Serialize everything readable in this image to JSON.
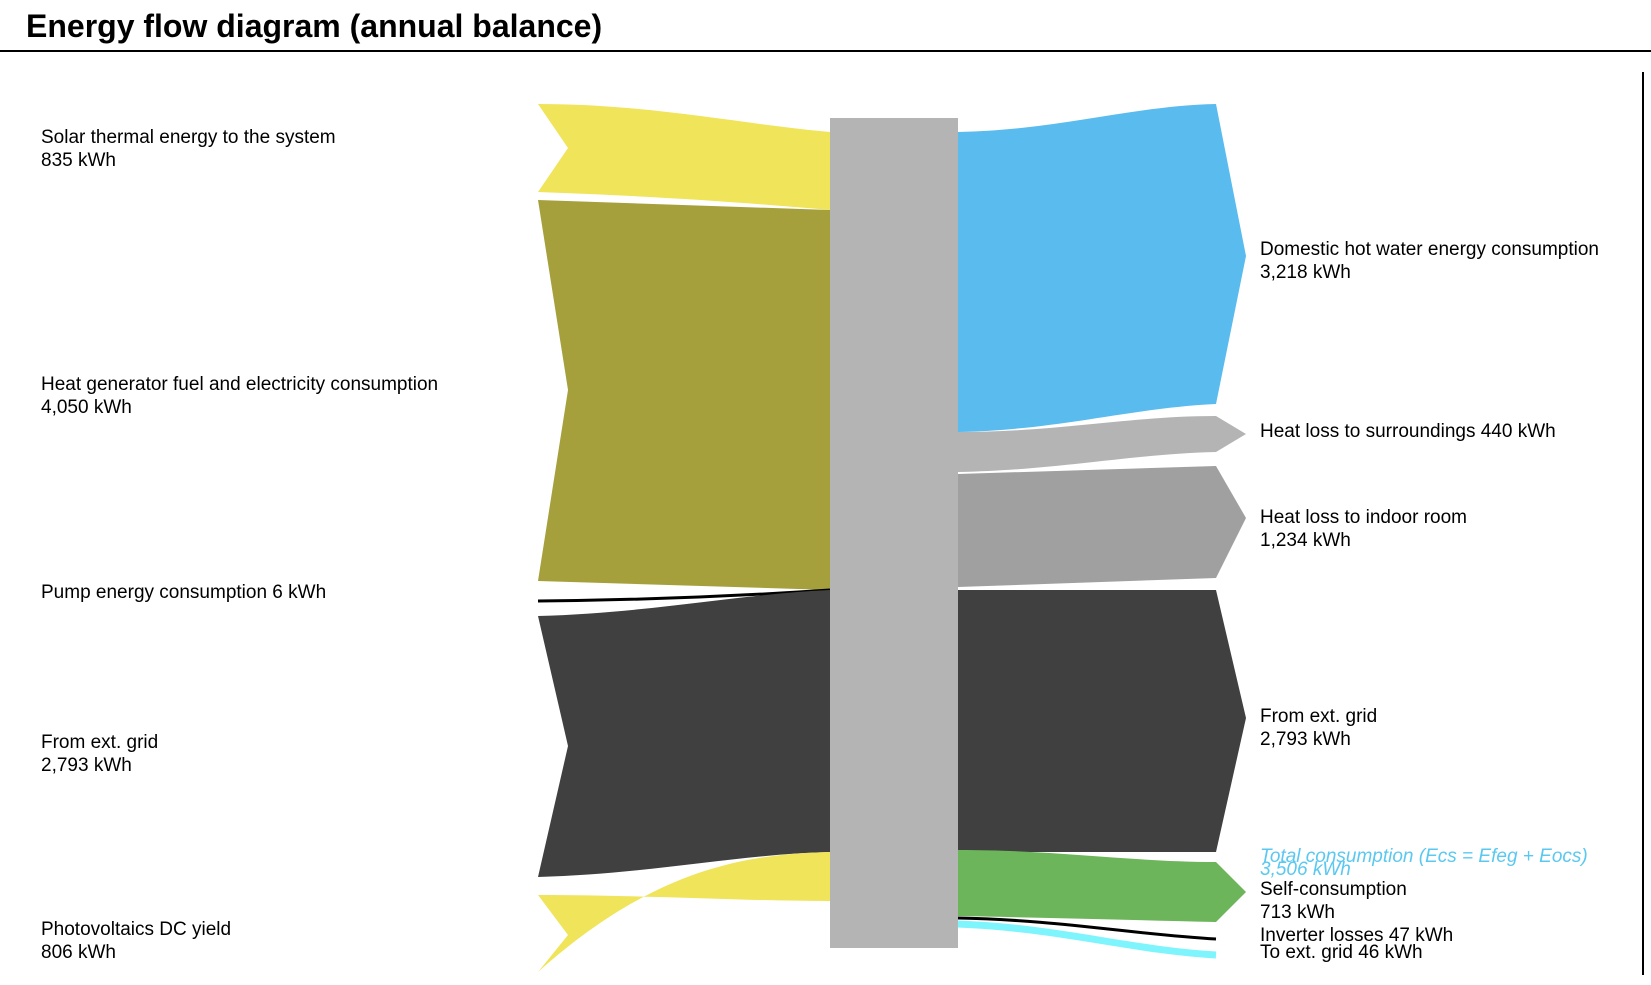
{
  "title": "Energy flow diagram (annual balance)",
  "colors": {
    "solar_yellow": "#f0e45a",
    "fuel_olive": "#a6a03c",
    "grid_dark": "#404040",
    "hub_gray": "#b4b4b4",
    "dhw_blue": "#5abbef",
    "loss_light_gray": "#b4b4b4",
    "loss_mid_gray": "#a0a0a0",
    "self_green": "#6db55b",
    "to_grid_cyan": "#7ef4fc",
    "annotation_blue": "#5ac8f0"
  },
  "inputs": [
    {
      "id": "solar",
      "name": "Solar thermal energy to the system",
      "value": "835 kWh",
      "kwh": 835
    },
    {
      "id": "fuel",
      "name": "Heat generator fuel and electricity consumption",
      "value": "4,050 kWh",
      "kwh": 4050
    },
    {
      "id": "pump",
      "name": "Pump energy consumption 6 kWh",
      "value": "",
      "kwh": 6
    },
    {
      "id": "grid_in",
      "name": "From ext. grid",
      "value": "2,793 kWh",
      "kwh": 2793
    },
    {
      "id": "pv",
      "name": "Photovoltaics DC yield",
      "value": "806 kWh",
      "kwh": 806
    }
  ],
  "outputs": [
    {
      "id": "dhw",
      "name": "Domestic hot water energy consumption",
      "value": "3,218 kWh",
      "kwh": 3218
    },
    {
      "id": "loss_surr",
      "name": "Heat loss to surroundings 440 kWh",
      "value": "",
      "kwh": 440
    },
    {
      "id": "loss_room",
      "name": "Heat loss to indoor room",
      "value": "1,234 kWh",
      "kwh": 1234
    },
    {
      "id": "grid_out",
      "name": "From ext. grid",
      "value": "2,793 kWh",
      "kwh": 2793
    },
    {
      "id": "self",
      "name": "Self-consumption",
      "value": "713 kWh",
      "kwh": 713
    },
    {
      "id": "inverter",
      "name": "Inverter losses 47 kWh",
      "value": "",
      "kwh": 47
    },
    {
      "id": "to_grid",
      "name": "To ext. grid 46 kWh",
      "value": "",
      "kwh": 46
    }
  ],
  "annotation": {
    "label": "Total consumption (Ecs = Efeg + Eocs)",
    "value": "3,506 kWh"
  }
}
